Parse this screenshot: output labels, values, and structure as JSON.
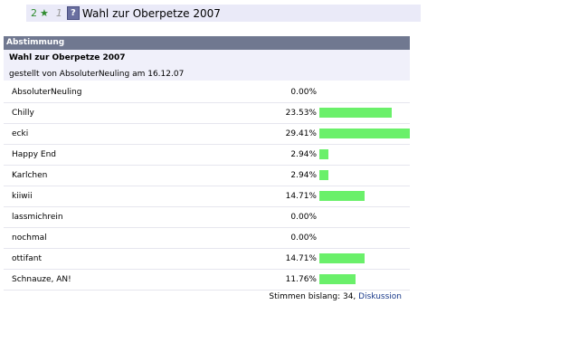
{
  "topbar": {
    "score": "2",
    "star_icon": "star-plus-icon",
    "rank": "1",
    "help_icon": "question-icon",
    "title": "Wahl zur Oberpetze 2007"
  },
  "panel": {
    "header": "Abstimmung",
    "question": "Wahl zur Oberpetze 2007",
    "meta": "gestellt von AbsoluterNeuling am 16.12.07"
  },
  "options": [
    {
      "name": "AbsoluterNeuling",
      "pct_text": "0.00%",
      "pct": 0.0
    },
    {
      "name": "Chilly",
      "pct_text": "23.53%",
      "pct": 23.53
    },
    {
      "name": "ecki",
      "pct_text": "29.41%",
      "pct": 29.41
    },
    {
      "name": "Happy End",
      "pct_text": "2.94%",
      "pct": 2.94
    },
    {
      "name": "Karlchen",
      "pct_text": "2.94%",
      "pct": 2.94
    },
    {
      "name": "kiiwii",
      "pct_text": "14.71%",
      "pct": 14.71
    },
    {
      "name": "lassmichrein",
      "pct_text": "0.00%",
      "pct": 0.0
    },
    {
      "name": "nochmal",
      "pct_text": "0.00%",
      "pct": 0.0
    },
    {
      "name": "ottifant",
      "pct_text": "14.71%",
      "pct": 14.71
    },
    {
      "name": "Schnauze, AN!",
      "pct_text": "11.76%",
      "pct": 11.76
    }
  ],
  "bar_color": "#6af06a",
  "max_pct": 29.41,
  "footer": {
    "votes_text": "Stimmen bislang: 34, ",
    "discussion_link": "Diskussion"
  }
}
